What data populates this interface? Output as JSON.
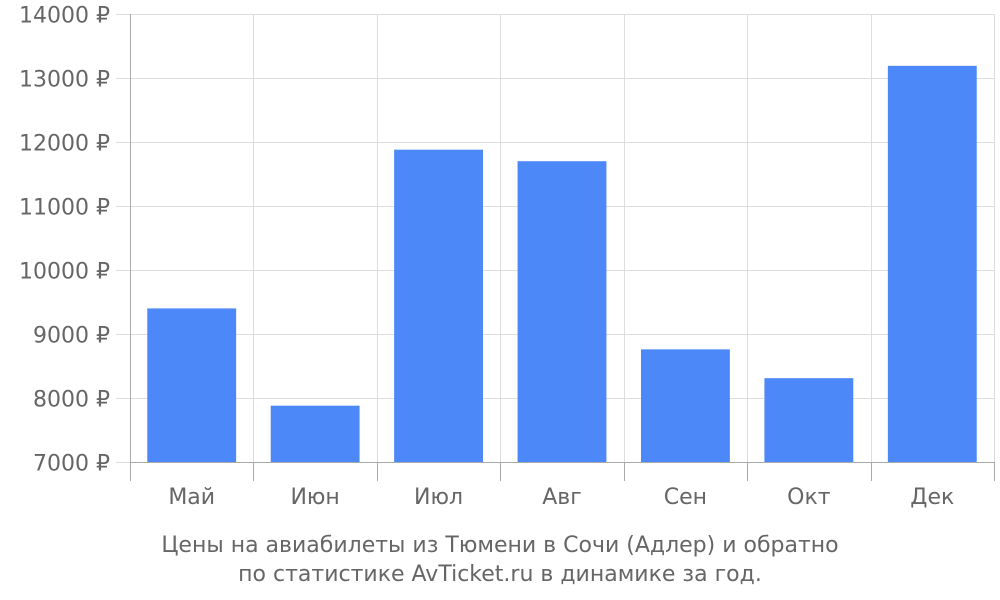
{
  "chart_data": {
    "type": "bar",
    "categories": [
      "Май",
      "Июн",
      "Июл",
      "Авг",
      "Сен",
      "Окт",
      "Дек"
    ],
    "values": [
      9400,
      7880,
      11880,
      11700,
      8760,
      8310,
      13190
    ],
    "ylim": [
      7000,
      14000
    ],
    "yticks": [
      7000,
      8000,
      9000,
      10000,
      11000,
      12000,
      13000,
      14000
    ],
    "ytick_labels": [
      "7000 ₽",
      "8000 ₽",
      "9000 ₽",
      "10000 ₽",
      "11000 ₽",
      "12000 ₽",
      "13000 ₽",
      "14000 ₽"
    ],
    "grid": true,
    "bar_color": "#4d88f9",
    "title": ""
  },
  "caption": {
    "line1": "Цены на авиабилеты из Тюмени в Сочи (Адлер) и обратно",
    "line2": "по статистике AvTicket.ru в динамике за год."
  }
}
